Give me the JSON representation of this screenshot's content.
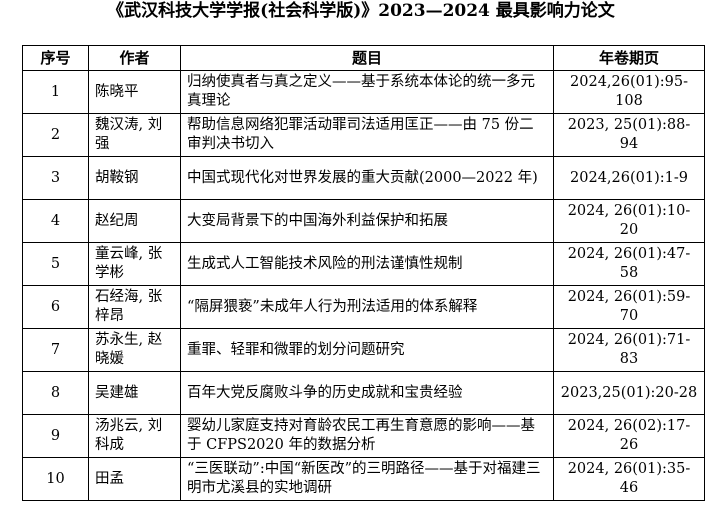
{
  "header": {
    "title": "《武汉科技大学学报(社会科学版)》2023—2024 最具影响力论文"
  },
  "table": {
    "columns": [
      "序号",
      "作者",
      "题目",
      "年卷期页"
    ],
    "rows": [
      [
        "1",
        "陈晓平",
        "归纳使真者与真之定义——基于系统本体论的统一多元真理论",
        "2024,26(01):95-108"
      ],
      [
        "2",
        "魏汉涛, 刘强",
        "帮助信息网络犯罪活动罪司法适用匡正——由 75 份二审判决书切入",
        "2023, 25(01):88-94"
      ],
      [
        "3",
        "胡鞍钢",
        "中国式现代化对世界发展的重大贡献(2000—2022 年)",
        "2024,26(01):1-9"
      ],
      [
        "4",
        "赵纪周",
        "大变局背景下的中国海外利益保护和拓展",
        "2024, 26(01):10-20"
      ],
      [
        "5",
        "童云峰, 张学彬",
        "生成式人工智能技术风险的刑法谨慎性规制",
        "2024, 26(01):47-58"
      ],
      [
        "6",
        "石经海, 张梓昂",
        "“隔屏猥亵”未成年人行为刑法适用的体系解释",
        "2024, 26(01):59-70"
      ],
      [
        "7",
        "苏永生, 赵晓媛",
        "重罪、轻罪和微罪的划分问题研究",
        "2024, 26(01):71-83"
      ],
      [
        "8",
        "吴建雄",
        "百年大党反腐败斗争的历史成就和宝贵经验",
        "2023,25(01):20-28"
      ],
      [
        "9",
        "汤兆云, 刘科成",
        "婴幼儿家庭支持对育龄农民工再生育意愿的影响——基于 CFPS2020 年的数据分析",
        "2024, 26(02):17-26"
      ],
      [
        "10",
        "田孟",
        "“三医联动”:中国“新医改”的三明路径——基于对福建三明市尤溪县的实地调研",
        "2024, 26(01):35-46"
      ]
    ]
  }
}
